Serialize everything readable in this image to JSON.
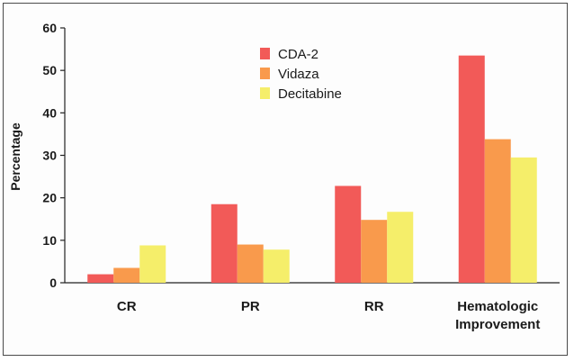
{
  "chart_data": {
    "type": "bar",
    "title": "",
    "xlabel": "",
    "ylabel": "Percentage",
    "ylim": [
      0,
      60
    ],
    "yticks": [
      0,
      10,
      20,
      30,
      40,
      50,
      60
    ],
    "categories": [
      [
        "CR"
      ],
      [
        "PR"
      ],
      [
        "RR"
      ],
      [
        "Hematologic",
        "Improvement"
      ]
    ],
    "series": [
      {
        "name": "CDA-2",
        "color": "#f25a58",
        "values": [
          2,
          18.5,
          22.8,
          53.5
        ]
      },
      {
        "name": "Vidaza",
        "color": "#f99a4c",
        "values": [
          3.5,
          9,
          14.8,
          33.8
        ]
      },
      {
        "name": "Decitabine",
        "color": "#f5ee6a",
        "values": [
          8.8,
          7.8,
          16.7,
          29.5
        ]
      }
    ],
    "legend_position": "top-center"
  }
}
